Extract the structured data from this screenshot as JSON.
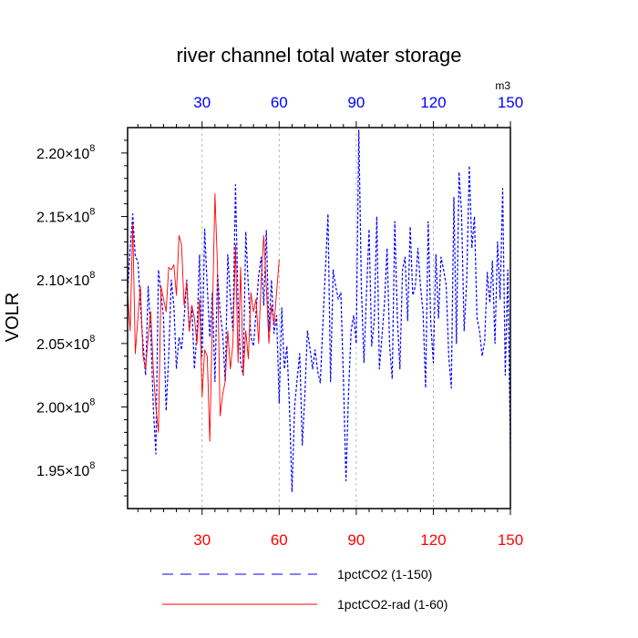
{
  "chart_data": {
    "type": "line",
    "title": "river channel total water storage",
    "units": "m3",
    "ylabel": "VOLR",
    "xlabel": "",
    "xlim": [
      1,
      150
    ],
    "ylim": [
      192000000.0,
      222000000.0
    ],
    "grid": "vertical dashed gridlines at x ticks",
    "legend_position": "bottom",
    "x_ticks_bottom": [
      30,
      60,
      90,
      120,
      150
    ],
    "x_ticks_top": [
      30,
      60,
      90,
      120,
      150
    ],
    "y_ticks": [
      195000000.0,
      200000000.0,
      205000000.0,
      210000000.0,
      215000000.0,
      220000000.0
    ],
    "y_tick_labels": [
      "1.95",
      "2.00",
      "2.05",
      "2.10",
      "2.15",
      "2.20"
    ],
    "y_tick_multiplier": "×10",
    "y_tick_exponent": "8",
    "colors": {
      "bottom_axis_labels": "#ff0000",
      "top_axis_labels": "#0000ff",
      "grid": "#aaaaaa"
    },
    "series": [
      {
        "name": "1pctCO2 (1-150)",
        "color": "#0000ff",
        "dash": "dashed",
        "x_start": 1,
        "values": [
          209000000.0,
          212500000.0,
          215200000.0,
          211800000.0,
          211500000.0,
          208000000.0,
          205000000.0,
          202500000.0,
          209500000.0,
          206000000.0,
          200000000.0,
          196300000.0,
          210800000.0,
          209000000.0,
          207000000.0,
          199700000.0,
          204000000.0,
          210000000.0,
          208000000.0,
          203000000.0,
          205500000.0,
          204500000.0,
          207000000.0,
          210000000.0,
          206000000.0,
          208000000.0,
          203000000.0,
          206000000.0,
          212000000.0,
          204000000.0,
          214000000.0,
          209500000.0,
          205500000.0,
          209000000.0,
          202000000.0,
          210500000.0,
          207500000.0,
          205800000.0,
          202000000.0,
          212000000.0,
          208500000.0,
          206000000.0,
          217500000.0,
          208000000.0,
          203500000.0,
          202500000.0,
          213800000.0,
          209500000.0,
          205500000.0,
          204800000.0,
          207500000.0,
          210300000.0,
          211800000.0,
          208000000.0,
          213900000.0,
          206000000.0,
          210000000.0,
          205800000.0,
          207200000.0,
          200300000.0,
          207800000.0,
          203000000.0,
          204800000.0,
          200000000.0,
          193300000.0,
          200000000.0,
          202200000.0,
          204200000.0,
          197000000.0,
          201000000.0,
          206000000.0,
          204600000.0,
          203000000.0,
          204500000.0,
          202800000.0,
          201900000.0,
          206500000.0,
          210800000.0,
          215200000.0,
          202000000.0,
          210800000.0,
          209500000.0,
          208500000.0,
          209000000.0,
          202300000.0,
          194200000.0,
          201200000.0,
          206000000.0,
          207200000.0,
          205000000.0,
          221800000.0,
          209300000.0,
          203500000.0,
          209000000.0,
          214000000.0,
          204800000.0,
          206800000.0,
          215000000.0,
          203000000.0,
          205500000.0,
          208200000.0,
          212500000.0,
          204800000.0,
          202200000.0,
          214600000.0,
          207000000.0,
          203000000.0,
          210800000.0,
          211800000.0,
          206800000.0,
          214200000.0,
          208800000.0,
          209500000.0,
          212500000.0,
          209500000.0,
          207500000.0,
          201500000.0,
          214600000.0,
          206600000.0,
          203500000.0,
          212000000.0,
          207000000.0,
          211800000.0,
          210800000.0,
          209600000.0,
          204000000.0,
          201500000.0,
          216500000.0,
          205000000.0,
          218500000.0,
          215200000.0,
          206000000.0,
          210000000.0,
          219000000.0,
          212500000.0,
          215000000.0,
          207000000.0,
          206000000.0,
          204000000.0,
          205200000.0,
          210600000.0,
          208200000.0,
          211500000.0,
          205000000.0,
          213000000.0,
          208500000.0,
          217200000.0,
          202500000.0,
          210800000.0,
          196500000.0
        ]
      },
      {
        "name": "1pctCO2-rad (1-60)",
        "color": "#ff0000",
        "dash": "solid",
        "x_start": 1,
        "values": [
          209000000.0,
          206000000.0,
          214500000.0,
          204200000.0,
          207000000.0,
          209500000.0,
          204000000.0,
          203000000.0,
          205500000.0,
          207500000.0,
          203000000.0,
          200000000.0,
          198000000.0,
          209500000.0,
          208500000.0,
          207500000.0,
          211000000.0,
          210800000.0,
          211200000.0,
          208800000.0,
          213500000.0,
          212800000.0,
          208000000.0,
          209800000.0,
          206000000.0,
          208000000.0,
          207000000.0,
          205000000.0,
          208500000.0,
          200800000.0,
          204500000.0,
          204000000.0,
          197300000.0,
          207000000.0,
          216800000.0,
          211000000.0,
          199300000.0,
          201000000.0,
          202000000.0,
          206000000.0,
          203000000.0,
          205000000.0,
          212800000.0,
          203500000.0,
          211000000.0,
          202500000.0,
          206000000.0,
          203800000.0,
          209000000.0,
          207500000.0,
          208500000.0,
          205000000.0,
          210000000.0,
          213500000.0,
          209500000.0,
          205000000.0,
          208000000.0,
          206500000.0,
          209000000.0,
          211600000.0
        ]
      }
    ]
  }
}
